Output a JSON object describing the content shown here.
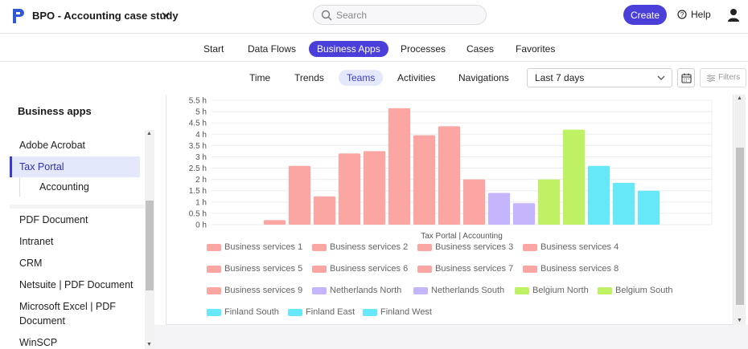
{
  "app": {
    "title": "BPO - Accounting case study"
  },
  "search": {
    "placeholder": "Search"
  },
  "header": {
    "create_label": "Create",
    "help_label": "Help"
  },
  "main_tabs": [
    {
      "label": "Start",
      "active": false
    },
    {
      "label": "Data Flows",
      "active": false
    },
    {
      "label": "Business Apps",
      "active": true
    },
    {
      "label": "Processes",
      "active": false
    },
    {
      "label": "Cases",
      "active": false
    },
    {
      "label": "Favorites",
      "active": false
    }
  ],
  "sub_tabs": [
    {
      "label": "Time",
      "active": false
    },
    {
      "label": "Trends",
      "active": false
    },
    {
      "label": "Teams",
      "active": true
    },
    {
      "label": "Activities",
      "active": false
    },
    {
      "label": "Navigations",
      "active": false
    }
  ],
  "filters": {
    "date_range": "Last 7 days",
    "filters_label": "Filters"
  },
  "sidebar": {
    "title": "Business apps",
    "items": [
      {
        "label": "Adobe Acrobat"
      },
      {
        "label": "Tax Portal",
        "selected": true
      },
      {
        "label": "Accounting",
        "child": true
      },
      {
        "label": "PDF Document"
      },
      {
        "label": "Intranet"
      },
      {
        "label": "CRM"
      },
      {
        "label": "Netsuite | PDF Document"
      },
      {
        "label": "Microsoft Excel | PDF Document"
      },
      {
        "label": "WinSCP"
      }
    ]
  },
  "colors": {
    "accent": "#4a3fd9",
    "business_services": "#fba6a3",
    "netherlands": "#c4b5fc",
    "belgium": "#bef264",
    "finland": "#67e8f9"
  },
  "chart_data": {
    "type": "bar",
    "xlabel": "Tax Portal | Accounting",
    "ylabel": "",
    "ylim": [
      0,
      5.5
    ],
    "yticks": [
      "0 h",
      "0.5 h",
      "1 h",
      "1.5 h",
      "2 h",
      "2.5 h",
      "3 h",
      "3.5 h",
      "4 h",
      "4.5 h",
      "5 h",
      "5.5 h"
    ],
    "grid": true,
    "legend_position": "bottom",
    "series": [
      {
        "name": "Business services 1",
        "value": 0.2,
        "color": "#fba6a3"
      },
      {
        "name": "Business services 2",
        "value": 2.6,
        "color": "#fba6a3"
      },
      {
        "name": "Business services 3",
        "value": 1.25,
        "color": "#fba6a3"
      },
      {
        "name": "Business services 4",
        "value": 3.15,
        "color": "#fba6a3"
      },
      {
        "name": "Business services 5",
        "value": 3.25,
        "color": "#fba6a3"
      },
      {
        "name": "Business services 6",
        "value": 5.15,
        "color": "#fba6a3"
      },
      {
        "name": "Business services 7",
        "value": 3.95,
        "color": "#fba6a3"
      },
      {
        "name": "Business services 8",
        "value": 4.35,
        "color": "#fba6a3"
      },
      {
        "name": "Business services 9",
        "value": 2.0,
        "color": "#fba6a3"
      },
      {
        "name": "Netherlands North",
        "value": 1.4,
        "color": "#c4b5fc"
      },
      {
        "name": "Netherlands South",
        "value": 0.95,
        "color": "#c4b5fc"
      },
      {
        "name": "Belgium North",
        "value": 2.0,
        "color": "#bef264"
      },
      {
        "name": "Belgium South",
        "value": 4.2,
        "color": "#bef264"
      },
      {
        "name": "Finland South",
        "value": 2.6,
        "color": "#67e8f9"
      },
      {
        "name": "Finland East",
        "value": 1.85,
        "color": "#67e8f9"
      },
      {
        "name": "Finland West",
        "value": 1.5,
        "color": "#67e8f9"
      }
    ]
  }
}
